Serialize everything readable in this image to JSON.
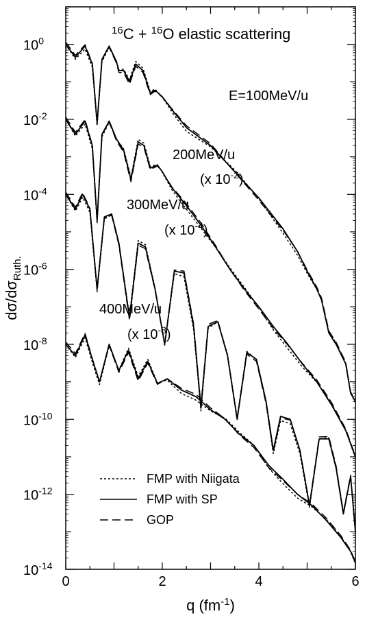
{
  "chart_data": {
    "type": "line",
    "title": "16C + 16O elastic scattering",
    "xlabel": "q (fm-1)",
    "ylabel": "dσ/dσRuth.",
    "xlim": [
      0,
      6
    ],
    "ylim": [
      1e-14,
      10
    ],
    "yscale": "log",
    "x_ticks": [
      0,
      2,
      4,
      6
    ],
    "y_ticks": [
      {
        "exp": -14,
        "label": "10-14"
      },
      {
        "exp": -12,
        "label": "10-12"
      },
      {
        "exp": -10,
        "label": "10-10"
      },
      {
        "exp": -8,
        "label": "10-8"
      },
      {
        "exp": -6,
        "label": "10-6"
      },
      {
        "exp": -4,
        "label": "10-4"
      },
      {
        "exp": -2,
        "label": "10-2"
      },
      {
        "exp": 0,
        "label": "100"
      }
    ],
    "legend": {
      "placement": "bottom-left",
      "entries": [
        {
          "label": "FMP with Niigata",
          "style": "dotted"
        },
        {
          "label": "FMP with SP",
          "style": "solid"
        },
        {
          "label": "GOP",
          "style": "dashed"
        }
      ]
    },
    "curves": [
      {
        "energy_label": "E=100MeV/u",
        "scale_label": "",
        "scale": 1,
        "x": [
          0,
          0.2,
          0.4,
          0.55,
          0.65,
          0.75,
          0.9,
          1.05,
          1.1,
          1.2,
          1.32,
          1.45,
          1.6,
          1.75,
          1.85,
          2.0,
          2.25,
          2.5,
          3.0,
          3.5,
          4.0,
          4.5,
          4.8,
          5.0,
          5.2,
          5.3,
          5.45,
          5.6,
          5.8,
          5.9,
          6.0
        ],
        "y": [
          1.0,
          0.45,
          0.9,
          0.3,
          0.008,
          0.4,
          0.9,
          0.35,
          0.2,
          0.2,
          0.1,
          0.3,
          0.2,
          0.05,
          0.06,
          0.04,
          0.015,
          0.006,
          0.002,
          0.0004,
          8e-05,
          1.2e-05,
          3e-06,
          9e-07,
          3e-07,
          1.5e-07,
          2e-08,
          1e-08,
          3e-09,
          5e-10,
          3e-10
        ],
        "x_ticks_note": "",
        "dip_depth": 1
      },
      {
        "energy_label": "200MeV/u",
        "scale_label": "(x 10-2)",
        "scale": 0.01,
        "x": [
          0,
          0.2,
          0.4,
          0.55,
          0.65,
          0.75,
          0.9,
          1.05,
          1.2,
          1.35,
          1.5,
          1.62,
          1.75,
          1.9,
          2.0,
          2.2,
          2.5,
          2.8,
          3.1,
          3.4,
          3.7,
          4.0,
          4.3,
          4.6,
          4.9,
          5.2,
          5.5,
          5.8,
          6.0
        ],
        "y": [
          0.01,
          0.004,
          0.009,
          0.002,
          2e-05,
          0.004,
          0.009,
          0.003,
          0.0015,
          0.00025,
          0.0025,
          0.002,
          0.0005,
          0.0006,
          0.0004,
          0.00015,
          5e-05,
          1.5e-05,
          4e-06,
          1e-06,
          3e-07,
          1e-07,
          3e-08,
          1e-08,
          3e-09,
          1e-09,
          2.5e-10,
          5e-11,
          1e-11
        ]
      },
      {
        "energy_label": "300MeV/u",
        "scale_label": "(x 10-4)",
        "scale": 0.0001,
        "x": [
          0,
          0.2,
          0.35,
          0.5,
          0.65,
          0.8,
          0.95,
          1.1,
          1.32,
          1.5,
          1.65,
          1.85,
          2.05,
          2.25,
          2.45,
          2.65,
          2.8,
          2.95,
          3.15,
          3.35,
          3.55,
          3.75,
          3.95,
          4.15,
          4.3,
          4.45,
          4.65,
          4.85,
          5.05,
          5.25,
          5.45,
          5.6,
          5.75,
          5.9,
          6.0
        ],
        "y": [
          0.0001,
          4e-05,
          0.0001,
          4e-05,
          3e-07,
          2.5e-05,
          3e-05,
          5e-06,
          5e-08,
          5e-06,
          4e-06,
          3e-07,
          1e-08,
          9e-07,
          8e-07,
          3e-08,
          2e-10,
          3e-08,
          4e-08,
          5e-09,
          1e-10,
          6e-09,
          4e-09,
          3e-10,
          1.5e-11,
          1.2e-10,
          1e-10,
          1.5e-11,
          5e-13,
          3e-11,
          3e-11,
          5e-12,
          3e-13,
          3e-12,
          1e-13
        ]
      },
      {
        "energy_label": "400MeV/u",
        "scale_label": "(x 10-8)",
        "scale": 1e-08,
        "x": [
          0,
          0.2,
          0.4,
          0.55,
          0.7,
          0.9,
          1.1,
          1.3,
          1.5,
          1.7,
          1.9,
          2.1,
          2.4,
          2.7,
          3.0,
          3.3,
          3.6,
          3.9,
          4.2,
          4.5,
          4.8,
          5.1,
          5.4,
          5.7,
          5.9,
          6.0
        ],
        "y": [
          1e-08,
          5e-09,
          1.8e-08,
          4e-09,
          1e-09,
          1e-08,
          2e-09,
          7e-09,
          1.2e-09,
          3.5e-09,
          9e-10,
          1.2e-09,
          6e-10,
          4e-10,
          1.8e-10,
          1e-10,
          4e-11,
          2e-11,
          6e-12,
          2.5e-12,
          1e-12,
          5e-13,
          2e-13,
          7e-14,
          3e-14,
          1.5e-14
        ]
      }
    ]
  }
}
